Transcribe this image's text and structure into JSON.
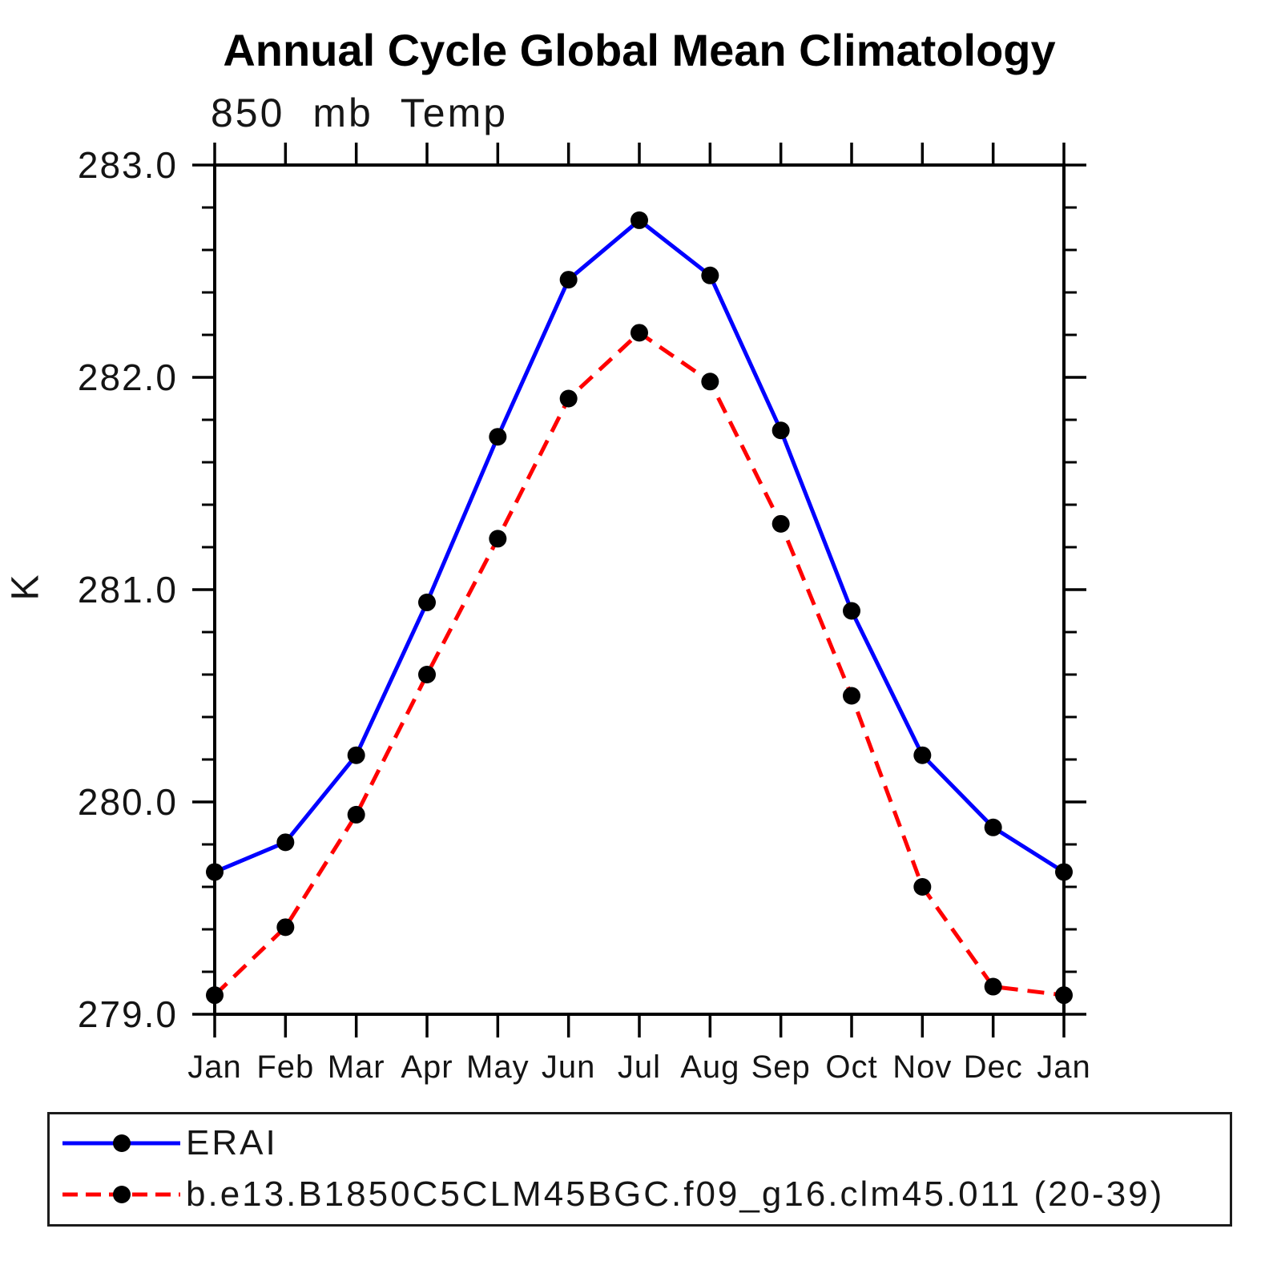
{
  "page": {
    "background": "#ffffff"
  },
  "chart_data": {
    "type": "line",
    "title": "Annual Cycle Global Mean Climatology",
    "subtitle": "850 mb Temp",
    "ylabel": "K",
    "xlabel": "",
    "categories": [
      "Jan",
      "Feb",
      "Mar",
      "Apr",
      "May",
      "Jun",
      "Jul",
      "Aug",
      "Sep",
      "Oct",
      "Nov",
      "Dec",
      "Jan"
    ],
    "ylim": [
      279.0,
      283.0
    ],
    "y_major_ticks": [
      "279.0",
      "280.0",
      "281.0",
      "282.0",
      "283.0"
    ],
    "y_minor_step": 0.2,
    "grid": false,
    "axis_color": "#000000",
    "frame": "box-with-outward-ticks",
    "series": [
      {
        "name": "ERAI",
        "color": "#0000ff",
        "line_style": "solid",
        "marker": "filled-circle",
        "marker_color": "#000000",
        "values": [
          279.67,
          279.81,
          280.22,
          280.94,
          281.72,
          282.46,
          282.74,
          282.48,
          281.75,
          280.9,
          280.22,
          279.88,
          279.67
        ]
      },
      {
        "name": "b.e13.B1850C5CLM45BGC.f09_g16.clm45.011 (20-39)",
        "color": "#ff0000",
        "line_style": "dashed",
        "marker": "filled-circle",
        "marker_color": "#000000",
        "values": [
          279.09,
          279.41,
          279.94,
          280.6,
          281.24,
          281.9,
          282.21,
          281.98,
          281.31,
          280.5,
          279.6,
          279.13,
          279.09
        ]
      }
    ],
    "legend": {
      "position": "bottom-left",
      "border": true,
      "entries": [
        "ERAI",
        "b.e13.B1850C5CLM45BGC.f09_g16.clm45.011 (20-39)"
      ]
    }
  }
}
